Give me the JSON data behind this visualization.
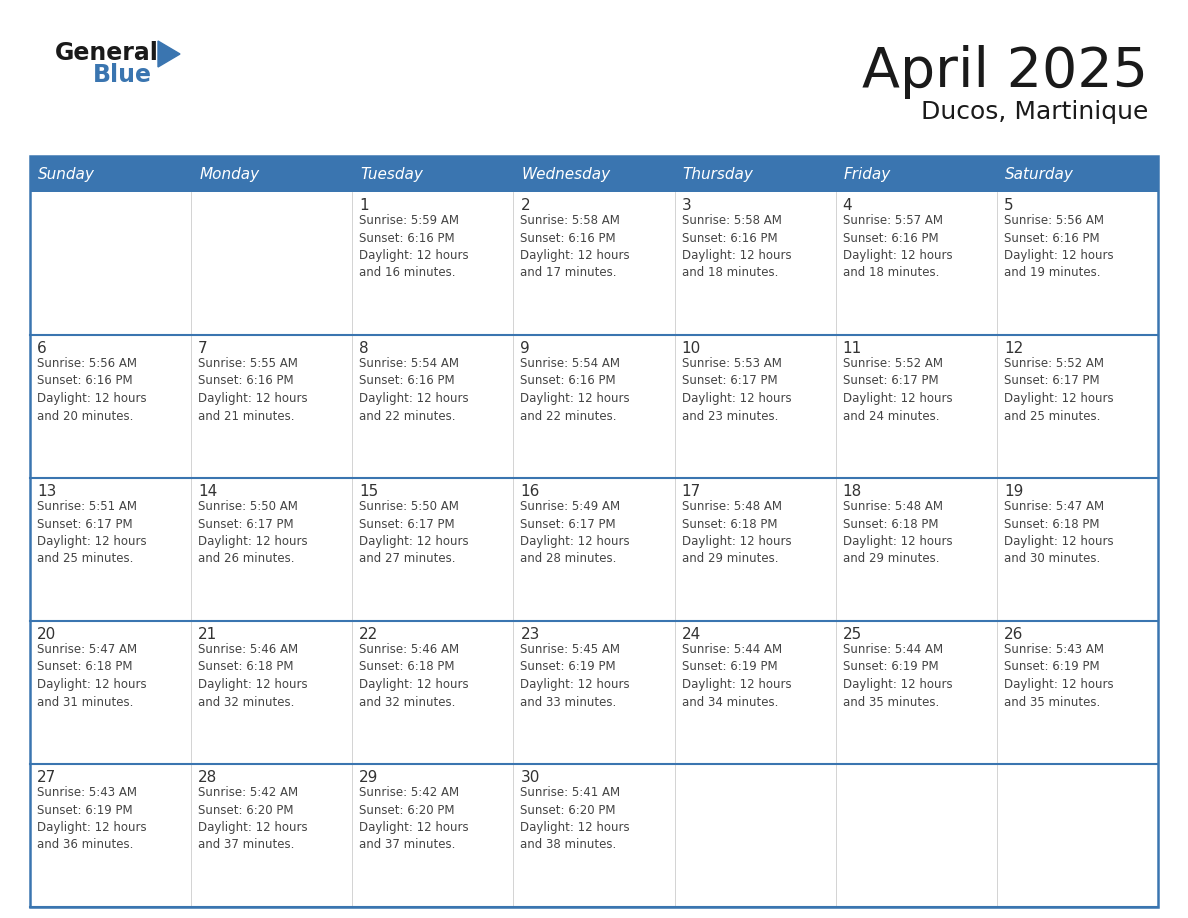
{
  "title": "April 2025",
  "subtitle": "Ducos, Martinique",
  "header_color": "#3A75B0",
  "header_text_color": "#FFFFFF",
  "border_color": "#3A75B0",
  "row_separator_color": "#3A75B0",
  "col_separator_color": "#CCCCCC",
  "text_color": "#444444",
  "day_num_color": "#333333",
  "days_of_week": [
    "Sunday",
    "Monday",
    "Tuesday",
    "Wednesday",
    "Thursday",
    "Friday",
    "Saturday"
  ],
  "calendar": [
    [
      {
        "day": "",
        "sunrise": "",
        "sunset": "",
        "daylight_min": ""
      },
      {
        "day": "",
        "sunrise": "",
        "sunset": "",
        "daylight_min": ""
      },
      {
        "day": "1",
        "sunrise": "5:59 AM",
        "sunset": "6:16 PM",
        "daylight_min": "16"
      },
      {
        "day": "2",
        "sunrise": "5:58 AM",
        "sunset": "6:16 PM",
        "daylight_min": "17"
      },
      {
        "day": "3",
        "sunrise": "5:58 AM",
        "sunset": "6:16 PM",
        "daylight_min": "18"
      },
      {
        "day": "4",
        "sunrise": "5:57 AM",
        "sunset": "6:16 PM",
        "daylight_min": "18"
      },
      {
        "day": "5",
        "sunrise": "5:56 AM",
        "sunset": "6:16 PM",
        "daylight_min": "19"
      }
    ],
    [
      {
        "day": "6",
        "sunrise": "5:56 AM",
        "sunset": "6:16 PM",
        "daylight_min": "20"
      },
      {
        "day": "7",
        "sunrise": "5:55 AM",
        "sunset": "6:16 PM",
        "daylight_min": "21"
      },
      {
        "day": "8",
        "sunrise": "5:54 AM",
        "sunset": "6:16 PM",
        "daylight_min": "22"
      },
      {
        "day": "9",
        "sunrise": "5:54 AM",
        "sunset": "6:16 PM",
        "daylight_min": "22"
      },
      {
        "day": "10",
        "sunrise": "5:53 AM",
        "sunset": "6:17 PM",
        "daylight_min": "23"
      },
      {
        "day": "11",
        "sunrise": "5:52 AM",
        "sunset": "6:17 PM",
        "daylight_min": "24"
      },
      {
        "day": "12",
        "sunrise": "5:52 AM",
        "sunset": "6:17 PM",
        "daylight_min": "25"
      }
    ],
    [
      {
        "day": "13",
        "sunrise": "5:51 AM",
        "sunset": "6:17 PM",
        "daylight_min": "25"
      },
      {
        "day": "14",
        "sunrise": "5:50 AM",
        "sunset": "6:17 PM",
        "daylight_min": "26"
      },
      {
        "day": "15",
        "sunrise": "5:50 AM",
        "sunset": "6:17 PM",
        "daylight_min": "27"
      },
      {
        "day": "16",
        "sunrise": "5:49 AM",
        "sunset": "6:17 PM",
        "daylight_min": "28"
      },
      {
        "day": "17",
        "sunrise": "5:48 AM",
        "sunset": "6:18 PM",
        "daylight_min": "29"
      },
      {
        "day": "18",
        "sunrise": "5:48 AM",
        "sunset": "6:18 PM",
        "daylight_min": "29"
      },
      {
        "day": "19",
        "sunrise": "5:47 AM",
        "sunset": "6:18 PM",
        "daylight_min": "30"
      }
    ],
    [
      {
        "day": "20",
        "sunrise": "5:47 AM",
        "sunset": "6:18 PM",
        "daylight_min": "31"
      },
      {
        "day": "21",
        "sunrise": "5:46 AM",
        "sunset": "6:18 PM",
        "daylight_min": "32"
      },
      {
        "day": "22",
        "sunrise": "5:46 AM",
        "sunset": "6:18 PM",
        "daylight_min": "32"
      },
      {
        "day": "23",
        "sunrise": "5:45 AM",
        "sunset": "6:19 PM",
        "daylight_min": "33"
      },
      {
        "day": "24",
        "sunrise": "5:44 AM",
        "sunset": "6:19 PM",
        "daylight_min": "34"
      },
      {
        "day": "25",
        "sunrise": "5:44 AM",
        "sunset": "6:19 PM",
        "daylight_min": "35"
      },
      {
        "day": "26",
        "sunrise": "5:43 AM",
        "sunset": "6:19 PM",
        "daylight_min": "35"
      }
    ],
    [
      {
        "day": "27",
        "sunrise": "5:43 AM",
        "sunset": "6:19 PM",
        "daylight_min": "36"
      },
      {
        "day": "28",
        "sunrise": "5:42 AM",
        "sunset": "6:20 PM",
        "daylight_min": "37"
      },
      {
        "day": "29",
        "sunrise": "5:42 AM",
        "sunset": "6:20 PM",
        "daylight_min": "37"
      },
      {
        "day": "30",
        "sunrise": "5:41 AM",
        "sunset": "6:20 PM",
        "daylight_min": "38"
      },
      {
        "day": "",
        "sunrise": "",
        "sunset": "",
        "daylight_min": ""
      },
      {
        "day": "",
        "sunrise": "",
        "sunset": "",
        "daylight_min": ""
      },
      {
        "day": "",
        "sunrise": "",
        "sunset": "",
        "daylight_min": ""
      }
    ]
  ],
  "logo_general_color": "#1a1a1a",
  "logo_blue_color": "#3A75B0",
  "title_color": "#1a1a1a",
  "subtitle_color": "#1a1a1a",
  "title_fontsize": 40,
  "subtitle_fontsize": 18,
  "header_fontsize": 11,
  "day_num_fontsize": 11,
  "cell_text_fontsize": 8.5
}
